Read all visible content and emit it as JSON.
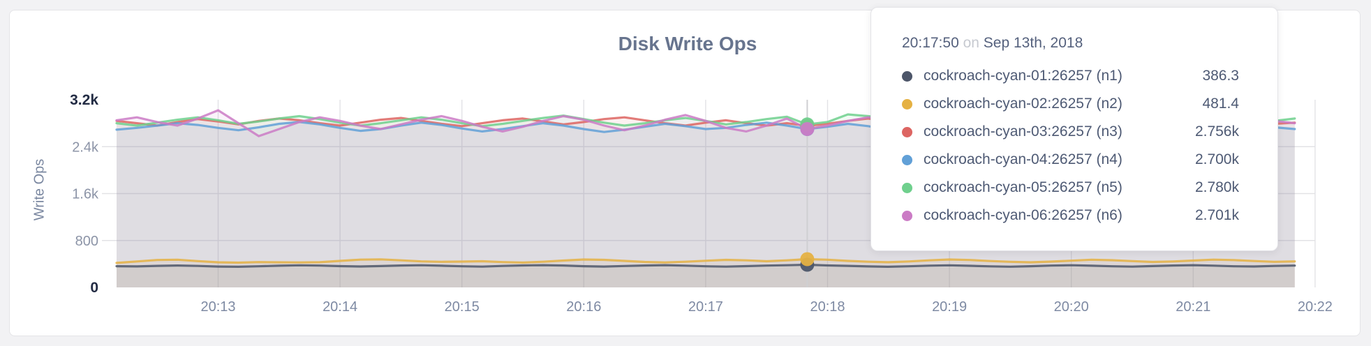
{
  "tooltip": {
    "time": "20:17:50",
    "connector": "on",
    "date": "Sep 13th, 2018",
    "rows": [
      {
        "label": "cockroach-cyan-01:26257 (n1)",
        "value": "386.3"
      },
      {
        "label": "cockroach-cyan-02:26257 (n2)",
        "value": "481.4"
      },
      {
        "label": "cockroach-cyan-03:26257 (n3)",
        "value": "2.756k"
      },
      {
        "label": "cockroach-cyan-04:26257 (n4)",
        "value": "2.700k"
      },
      {
        "label": "cockroach-cyan-05:26257 (n5)",
        "value": "2.780k"
      },
      {
        "label": "cockroach-cyan-06:26257 (n6)",
        "value": "2.701k"
      }
    ]
  },
  "chart_data": {
    "type": "line",
    "title": "Disk Write Ops",
    "ylabel": "Write Ops",
    "xlabel": "",
    "ylim": [
      0,
      3200
    ],
    "grid": true,
    "legend_position": "tooltip",
    "y_ticks": [
      {
        "value": 0,
        "label": "0",
        "grid": false,
        "strong": true
      },
      {
        "value": 800,
        "label": "800",
        "grid": true,
        "strong": false
      },
      {
        "value": 1600,
        "label": "1.6k",
        "grid": true,
        "strong": false
      },
      {
        "value": 2400,
        "label": "2.4k",
        "grid": true,
        "strong": false
      },
      {
        "value": 3200,
        "label": "3.2k",
        "grid": false,
        "strong": true
      }
    ],
    "x_ticks": [
      "20:13",
      "20:14",
      "20:15",
      "20:16",
      "20:17",
      "20:18",
      "20:19",
      "20:20",
      "20:21",
      "20:22"
    ],
    "x_start": "20:12:10",
    "x_interval_seconds": 10,
    "hover_index": 34,
    "hover_time": "20:17:50",
    "series": [
      {
        "name": "cockroach-cyan-01:26257 (n1)",
        "color": "#4d5669",
        "values": [
          362,
          358,
          368,
          374,
          366,
          356,
          352,
          360,
          370,
          377,
          372,
          363,
          357,
          364,
          373,
          378,
          370,
          361,
          355,
          366,
          375,
          380,
          373,
          362,
          356,
          365,
          374,
          379,
          371,
          360,
          354,
          363,
          372,
          378,
          386.3,
          375,
          368,
          358,
          352,
          361,
          371,
          377,
          369,
          359,
          353,
          362,
          372,
          378,
          370,
          360,
          355,
          364,
          373,
          379,
          371,
          361,
          357,
          366,
          372
        ]
      },
      {
        "name": "cockroach-cyan-02:26257 (n2)",
        "color": "#e5b143",
        "values": [
          418,
          442,
          468,
          472,
          448,
          428,
          422,
          432,
          428,
          426,
          430,
          452,
          474,
          478,
          462,
          444,
          436,
          440,
          446,
          432,
          424,
          438,
          458,
          476,
          470,
          452,
          434,
          426,
          438,
          454,
          470,
          462,
          446,
          462,
          481.4,
          472,
          452,
          438,
          430,
          442,
          462,
          476,
          468,
          450,
          436,
          428,
          440,
          456,
          472,
          464,
          448,
          434,
          442,
          458,
          474,
          466,
          450,
          436,
          444
        ]
      },
      {
        "name": "cockroach-cyan-03:26257 (n3)",
        "color": "#dd6562",
        "values": [
          2840,
          2800,
          2760,
          2820,
          2870,
          2830,
          2780,
          2840,
          2880,
          2850,
          2800,
          2760,
          2810,
          2860,
          2890,
          2840,
          2790,
          2750,
          2800,
          2850,
          2880,
          2830,
          2780,
          2820,
          2870,
          2900,
          2850,
          2800,
          2760,
          2810,
          2850,
          2800,
          2760,
          2800,
          2756,
          2790,
          2840,
          2880,
          2840,
          2790,
          2750,
          2800,
          2850,
          2820,
          2780,
          2830,
          2870,
          2840,
          2790,
          2760,
          2810,
          2860,
          2830,
          2780,
          2820,
          2860,
          2830,
          2790,
          2810
        ]
      },
      {
        "name": "cockroach-cyan-04:26257 (n4)",
        "color": "#61a0d7",
        "values": [
          2690,
          2720,
          2760,
          2800,
          2770,
          2720,
          2680,
          2730,
          2790,
          2820,
          2780,
          2720,
          2670,
          2700,
          2760,
          2810,
          2770,
          2710,
          2660,
          2700,
          2750,
          2800,
          2760,
          2700,
          2650,
          2690,
          2740,
          2790,
          2750,
          2700,
          2720,
          2770,
          2810,
          2760,
          2700,
          2740,
          2790,
          2750,
          2690,
          2660,
          2710,
          2760,
          2800,
          2750,
          2690,
          2720,
          2780,
          2820,
          2770,
          2710,
          2680,
          2730,
          2780,
          2740,
          2690,
          2720,
          2760,
          2730,
          2700
        ]
      },
      {
        "name": "cockroach-cyan-05:26257 (n5)",
        "color": "#6fd08d",
        "values": [
          2800,
          2760,
          2810,
          2860,
          2900,
          2850,
          2790,
          2830,
          2880,
          2920,
          2870,
          2810,
          2760,
          2800,
          2850,
          2900,
          2860,
          2800,
          2750,
          2790,
          2840,
          2890,
          2930,
          2870,
          2810,
          2760,
          2800,
          2850,
          2890,
          2840,
          2780,
          2820,
          2870,
          2910,
          2780,
          2820,
          2950,
          2920,
          2880,
          2820,
          2770,
          2810,
          2860,
          2900,
          2850,
          2790,
          2830,
          2880,
          2910,
          2860,
          2800,
          2750,
          2790,
          2840,
          2890,
          2850,
          2800,
          2840,
          2880
        ]
      },
      {
        "name": "cockroach-cyan-06:26257 (n6)",
        "color": "#cb7bc5",
        "values": [
          2850,
          2900,
          2820,
          2760,
          2880,
          3020,
          2800,
          2580,
          2700,
          2820,
          2900,
          2840,
          2760,
          2700,
          2780,
          2860,
          2920,
          2840,
          2740,
          2660,
          2740,
          2840,
          2920,
          2860,
          2760,
          2680,
          2760,
          2860,
          2940,
          2840,
          2720,
          2660,
          2760,
          2880,
          2701,
          2760,
          2840,
          2900,
          2820,
          2720,
          2660,
          2740,
          2840,
          2900,
          2820,
          2720,
          2780,
          2880,
          2960,
          2860,
          2740,
          2680,
          2760,
          2860,
          2800,
          2700,
          2760,
          2840,
          2800
        ]
      }
    ],
    "colors": {
      "grid": "#e2e2e6",
      "hover_line": "#cfcfd2",
      "fill_opacity": 0.09
    }
  }
}
